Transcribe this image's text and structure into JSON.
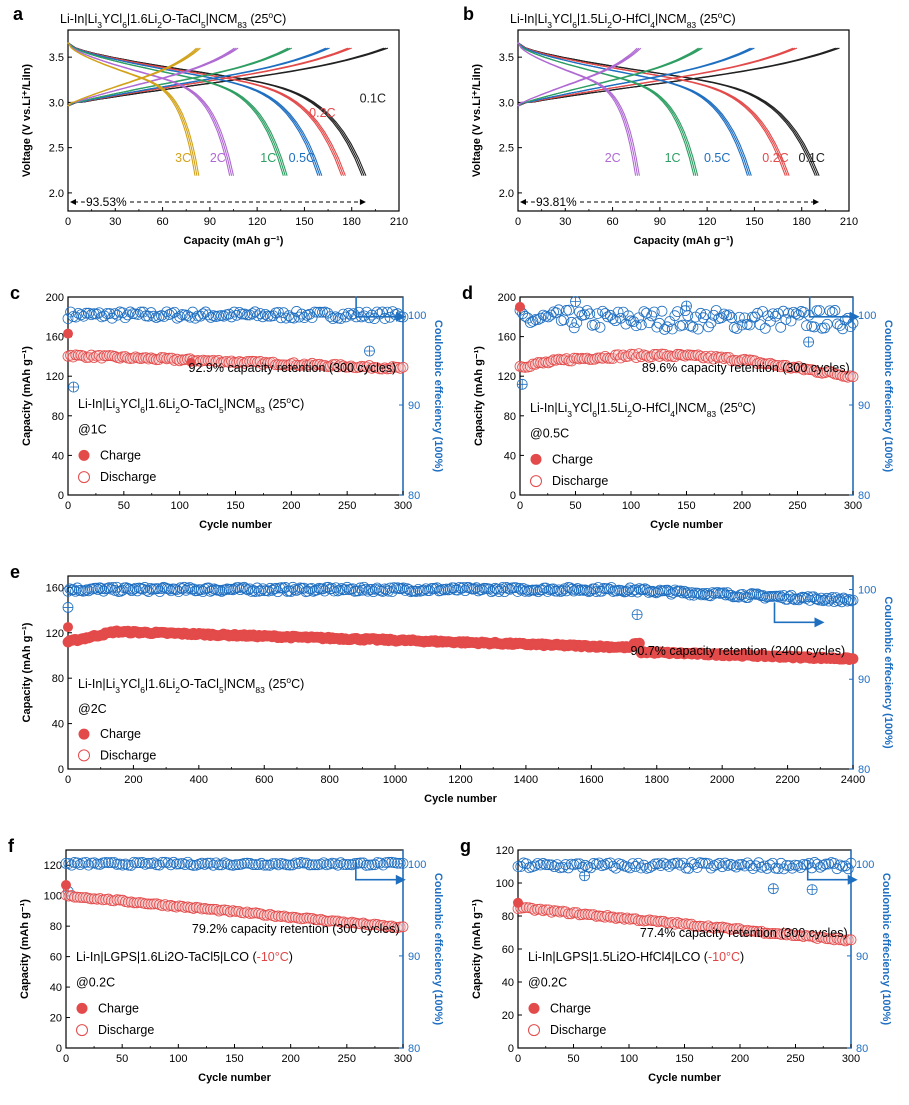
{
  "figure_title": "Multi-panel battery electrochemistry figure",
  "colors": {
    "red": "#e34a4a",
    "blue": "#1f6fc1",
    "green": "#2e9e63",
    "purple": "#b06ad3",
    "gold": "#d2a21a",
    "black": "#222222",
    "axis": "#000000",
    "right_axis": "#1f6fc1",
    "red_label": "#e04444"
  },
  "chart_data": [
    {
      "id": "a",
      "panel_letter": "a",
      "type": "line",
      "title": "Li-In|Li3YCl6|1.6Li2O-TaCl5|NCM83 (25°C)",
      "xlabel": "Capacity (mAh g⁻¹)",
      "ylabel": "Voltage (V vs.Li⁺/LiIn)",
      "xlim": [
        0,
        210
      ],
      "ylim": [
        1.8,
        3.8
      ],
      "xticks": [
        "0",
        "30",
        "60",
        "90",
        "120",
        "150",
        "180",
        "210"
      ],
      "yticks": [
        "2.0",
        "2.5",
        "3.0",
        "3.5"
      ],
      "retention_label": "93.53%",
      "retention_from": 0,
      "retention_to": 189,
      "series": [
        {
          "name": "0.1C",
          "color": "#222222",
          "charge_end": 203,
          "discharge_end": 189
        },
        {
          "name": "0.2C",
          "color": "#e34a4a",
          "charge_end": 180,
          "discharge_end": 176
        },
        {
          "name": "0.5C",
          "color": "#1f6fc1",
          "charge_end": 166,
          "discharge_end": 161
        },
        {
          "name": "1C",
          "color": "#2e9e63",
          "charge_end": 142,
          "discharge_end": 139
        },
        {
          "name": "2C",
          "color": "#b06ad3",
          "charge_end": 108,
          "discharge_end": 105
        },
        {
          "name": "3C",
          "color": "#d2a21a",
          "charge_end": 84,
          "discharge_end": 83
        }
      ],
      "annotations": [
        {
          "text": "0.1C",
          "x": 185,
          "y": 3.0,
          "color": "#222222"
        },
        {
          "text": "0.2C",
          "x": 153,
          "y": 2.84,
          "color": "#e34a4a"
        },
        {
          "text": "0.5C",
          "x": 140,
          "y": 2.34,
          "color": "#1f6fc1"
        },
        {
          "text": "1C",
          "x": 122,
          "y": 2.34,
          "color": "#2e9e63"
        },
        {
          "text": "2C",
          "x": 90,
          "y": 2.34,
          "color": "#b06ad3"
        },
        {
          "text": "3C",
          "x": 68,
          "y": 2.34,
          "color": "#d2a21a"
        }
      ]
    },
    {
      "id": "b",
      "panel_letter": "b",
      "type": "line",
      "title": "Li-In|Li3YCl6|1.5Li2O-HfCl4|NCM83 (25°C)",
      "xlabel": "Capacity (mAh g⁻¹)",
      "ylabel": "Voltage (V vs.Li⁺/LiIn)",
      "xlim": [
        0,
        210
      ],
      "ylim": [
        1.8,
        3.8
      ],
      "xticks": [
        "0",
        "30",
        "60",
        "90",
        "120",
        "150",
        "180",
        "210"
      ],
      "yticks": [
        "2.0",
        "2.5",
        "3.0",
        "3.5"
      ],
      "retention_label": "93.81%",
      "retention_from": 0,
      "retention_to": 191,
      "series": [
        {
          "name": "0.1C",
          "color": "#222222",
          "charge_end": 204,
          "discharge_end": 191
        },
        {
          "name": "0.2C",
          "color": "#e34a4a",
          "charge_end": 177,
          "discharge_end": 172
        },
        {
          "name": "0.5C",
          "color": "#1f6fc1",
          "charge_end": 150,
          "discharge_end": 148
        },
        {
          "name": "1C",
          "color": "#2e9e63",
          "charge_end": 117,
          "discharge_end": 114
        },
        {
          "name": "2C",
          "color": "#b06ad3",
          "charge_end": 78,
          "discharge_end": 77
        }
      ],
      "annotations": [
        {
          "text": "0.1C",
          "x": 178,
          "y": 2.34,
          "color": "#222222"
        },
        {
          "text": "0.2C",
          "x": 155,
          "y": 2.34,
          "color": "#e34a4a"
        },
        {
          "text": "0.5C",
          "x": 118,
          "y": 2.34,
          "color": "#1f6fc1"
        },
        {
          "text": "1C",
          "x": 93,
          "y": 2.34,
          "color": "#2e9e63"
        },
        {
          "text": "2C",
          "x": 55,
          "y": 2.34,
          "color": "#b06ad3"
        }
      ]
    },
    {
      "id": "c",
      "panel_letter": "c",
      "type": "scatter",
      "xlabel": "Cycle number",
      "ylabel": "Capacity (mAh g⁻¹)",
      "ylabel_right": "Coulombic effeciency (100%)",
      "xlim": [
        0,
        300
      ],
      "ylim": [
        0,
        200
      ],
      "y2lim": [
        80,
        102
      ],
      "xticks": [
        "0",
        "50",
        "100",
        "150",
        "200",
        "250",
        "300"
      ],
      "yticks": [
        "0",
        "40",
        "80",
        "120",
        "160",
        "200"
      ],
      "y2ticks": [
        "80",
        "90",
        "100"
      ],
      "capacity_start": 141,
      "capacity_end": 128,
      "first_charge": 163,
      "ce_level": 100,
      "retention_text": "92.9% capacity retention (300 cycles)",
      "cell_label": "Li-In|Li3YCl6|1.6Li2O-TaCl5|NCM83 (25°C)",
      "rate_label": "@1C",
      "legend": [
        "Charge",
        "Discharge"
      ]
    },
    {
      "id": "d",
      "panel_letter": "d",
      "type": "scatter",
      "xlabel": "Cycle number",
      "ylabel": "Capacity (mAh g⁻¹)",
      "ylabel_right": "Coulombic effeciency (100%)",
      "xlim": [
        0,
        300
      ],
      "ylim": [
        0,
        200
      ],
      "y2lim": [
        80,
        102
      ],
      "xticks": [
        "0",
        "50",
        "100",
        "150",
        "200",
        "250",
        "300"
      ],
      "yticks": [
        "0",
        "40",
        "80",
        "120",
        "160",
        "200"
      ],
      "y2ticks": [
        "80",
        "90",
        "100"
      ],
      "capacity_start": 130,
      "capacity_mid": 141,
      "capacity_end": 120,
      "first_charge": 190,
      "ce_level": 99.5,
      "retention_text": "89.6% capacity retention (300 cycles)",
      "cell_label": "Li-In|Li3YCl6|1.5Li2O-HfCl4|NCM83 (25°C)",
      "rate_label": "@0.5C",
      "legend": [
        "Charge",
        "Discharge"
      ]
    },
    {
      "id": "e",
      "panel_letter": "e",
      "type": "scatter",
      "xlabel": "Cycle number",
      "ylabel": "Capacity (mAh g⁻¹)",
      "ylabel_right": "Coulombic effeciency (100%)",
      "xlim": [
        0,
        2400
      ],
      "ylim": [
        0,
        170
      ],
      "y2lim": [
        80,
        101.5
      ],
      "xticks": [
        "0",
        "200",
        "400",
        "600",
        "800",
        "1000",
        "1200",
        "1400",
        "1600",
        "1800",
        "2000",
        "2200",
        "2400"
      ],
      "yticks": [
        "0",
        "40",
        "80",
        "120",
        "160"
      ],
      "y2ticks": [
        "80",
        "90",
        "100"
      ],
      "capacity_start": 112,
      "capacity_peak": 121,
      "capacity_end": 97,
      "first_charge": 125,
      "ce_level": 100,
      "retention_text": "90.7% capacity retention (2400 cycles)",
      "cell_label": "Li-In|Li3YCl6|1.6Li2O-TaCl5|NCM83 (25°C)",
      "rate_label": "@2C",
      "legend": [
        "Charge",
        "Discharge"
      ]
    },
    {
      "id": "f",
      "panel_letter": "f",
      "type": "scatter",
      "xlabel": "Cycle number",
      "ylabel": "Capacity (mAh g⁻¹)",
      "ylabel_right": "Coulombic effeciency (100%)",
      "xlim": [
        0,
        300
      ],
      "ylim": [
        0,
        130
      ],
      "y2lim": [
        80,
        101.5
      ],
      "xticks": [
        "0",
        "50",
        "100",
        "150",
        "200",
        "250",
        "300"
      ],
      "yticks": [
        "0",
        "20",
        "40",
        "60",
        "80",
        "100",
        "120"
      ],
      "y2ticks": [
        "80",
        "90",
        "100"
      ],
      "capacity_start": 100,
      "capacity_end": 79,
      "first_charge": 107,
      "ce_level": 100,
      "retention_text": "79.2% capacity retention (300 cycles)",
      "cell_label_prefix": "Li-In|LGPS|1.6Li2O-TaCl5|LCO (",
      "cell_label_temp": "-10°C",
      "cell_label_suffix": ")",
      "rate_label": "@0.2C",
      "legend": [
        "Charge",
        "Discharge"
      ]
    },
    {
      "id": "g",
      "panel_letter": "g",
      "type": "scatter",
      "xlabel": "Cycle number",
      "ylabel": "Capacity (mAh g⁻¹)",
      "ylabel_right": "Coulombic effeciency (100%)",
      "xlim": [
        0,
        300
      ],
      "ylim": [
        0,
        120
      ],
      "y2lim": [
        80,
        101.5
      ],
      "xticks": [
        "0",
        "50",
        "100",
        "150",
        "200",
        "250",
        "300"
      ],
      "yticks": [
        "0",
        "20",
        "40",
        "60",
        "80",
        "100",
        "120"
      ],
      "y2ticks": [
        "80",
        "90",
        "100"
      ],
      "capacity_start": 85,
      "capacity_end": 65,
      "first_charge": 88,
      "ce_level": 99.8,
      "retention_text": "77.4% capacity retention (300 cycles)",
      "cell_label_prefix": "Li-In|LGPS|1.5Li2O-HfCl4|LCO (",
      "cell_label_temp": "-10°C",
      "cell_label_suffix": ")",
      "rate_label": "@0.2C",
      "legend": [
        "Charge",
        "Discharge"
      ]
    }
  ]
}
